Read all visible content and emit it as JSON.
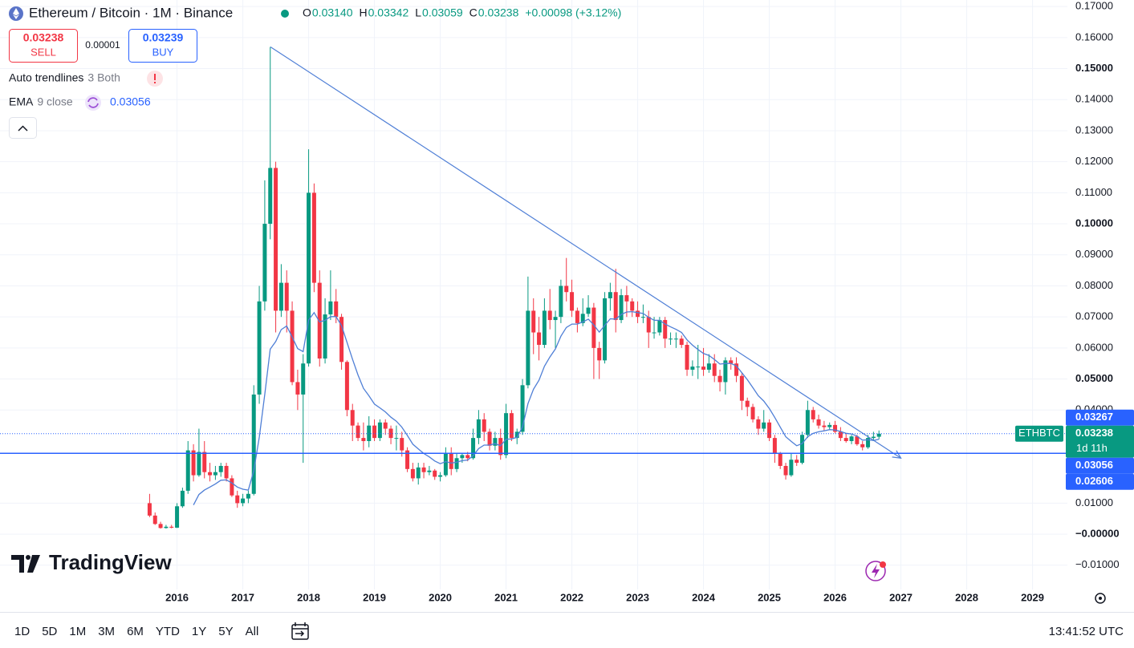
{
  "header": {
    "symbol": "Ethereum / Bitcoin · 1M · Binance",
    "ohlc": [
      {
        "key": "O",
        "value": "0.03140"
      },
      {
        "key": "H",
        "value": "0.03342"
      },
      {
        "key": "L",
        "value": "0.03059"
      },
      {
        "key": "C",
        "value": "0.03238"
      }
    ],
    "change": "+0.00098 (+3.12%)",
    "sell": {
      "price": "0.03238",
      "label": "SELL"
    },
    "spread": "0.00001",
    "buy": {
      "price": "0.03239",
      "label": "BUY"
    },
    "indicators": [
      {
        "name": "Auto trendlines",
        "params": "3 Both"
      },
      {
        "name": "EMA",
        "params": "9 close"
      }
    ]
  },
  "branding": "TradingView",
  "toolbar": {
    "ranges": [
      "1D",
      "5D",
      "1M",
      "3M",
      "6M",
      "YTD",
      "1Y",
      "5Y",
      "All"
    ],
    "time": "13:41:52 UTC"
  },
  "chart_data": {
    "type": "candlestick",
    "up_color": "#089981",
    "down_color": "#f23645",
    "grid": true,
    "xlim": [
      2013.31,
      2029.53
    ],
    "xticks": [
      2016,
      2017,
      2018,
      2019,
      2020,
      2021,
      2022,
      2023,
      2024,
      2025,
      2026,
      2027,
      2028,
      2029
    ],
    "ylim": [
      -0.0178,
      0.1721
    ],
    "yticks": [
      {
        "value": -0.01,
        "label": "−0.01000"
      },
      {
        "value": 0,
        "label": "−0.00000"
      },
      {
        "value": 0.01,
        "label": "0.01000"
      },
      {
        "value": 0.04,
        "label": "0.04000"
      },
      {
        "value": 0.05,
        "label": "0.05000"
      },
      {
        "value": 0.06,
        "label": "0.06000"
      },
      {
        "value": 0.07,
        "label": "0.07000"
      },
      {
        "value": 0.08,
        "label": "0.08000"
      },
      {
        "value": 0.09,
        "label": "0.09000"
      },
      {
        "value": 0.1,
        "label": "0.10000"
      },
      {
        "value": 0.11,
        "label": "0.11000"
      },
      {
        "value": 0.12,
        "label": "0.12000"
      },
      {
        "value": 0.13,
        "label": "0.13000"
      },
      {
        "value": 0.14,
        "label": "0.14000"
      },
      {
        "value": 0.15,
        "label": "0.15000"
      },
      {
        "value": 0.16,
        "label": "0.16000"
      },
      {
        "value": 0.17,
        "label": "0.17000"
      }
    ],
    "x": [
      "2015-08",
      "2015-09",
      "2015-10",
      "2015-11",
      "2015-12",
      "2016-01",
      "2016-02",
      "2016-03",
      "2016-04",
      "2016-05",
      "2016-06",
      "2016-07",
      "2016-08",
      "2016-09",
      "2016-10",
      "2016-11",
      "2016-12",
      "2017-01",
      "2017-02",
      "2017-03",
      "2017-04",
      "2017-05",
      "2017-06",
      "2017-07",
      "2017-08",
      "2017-09",
      "2017-10",
      "2017-11",
      "2017-12",
      "2018-01",
      "2018-02",
      "2018-03",
      "2018-04",
      "2018-05",
      "2018-06",
      "2018-07",
      "2018-08",
      "2018-09",
      "2018-10",
      "2018-11",
      "2018-12",
      "2019-01",
      "2019-02",
      "2019-03",
      "2019-04",
      "2019-05",
      "2019-06",
      "2019-07",
      "2019-08",
      "2019-09",
      "2019-10",
      "2019-11",
      "2019-12",
      "2020-01",
      "2020-02",
      "2020-03",
      "2020-04",
      "2020-05",
      "2020-06",
      "2020-07",
      "2020-08",
      "2020-09",
      "2020-10",
      "2020-11",
      "2020-12",
      "2021-01",
      "2021-02",
      "2021-03",
      "2021-04",
      "2021-05",
      "2021-06",
      "2021-07",
      "2021-08",
      "2021-09",
      "2021-10",
      "2021-11",
      "2021-12",
      "2022-01",
      "2022-02",
      "2022-03",
      "2022-04",
      "2022-05",
      "2022-06",
      "2022-07",
      "2022-08",
      "2022-09",
      "2022-10",
      "2022-11",
      "2022-12",
      "2023-01",
      "2023-02",
      "2023-03",
      "2023-04",
      "2023-05",
      "2023-06",
      "2023-07",
      "2023-08",
      "2023-09",
      "2023-10",
      "2023-11",
      "2023-12",
      "2024-01",
      "2024-02",
      "2024-03",
      "2024-04",
      "2024-05",
      "2024-06",
      "2024-07",
      "2024-08",
      "2024-09",
      "2024-10",
      "2024-11",
      "2024-12",
      "2025-01",
      "2025-02",
      "2025-03",
      "2025-04",
      "2025-05",
      "2025-06",
      "2025-07",
      "2025-08",
      "2025-09",
      "2025-10",
      "2025-11",
      "2025-12",
      "2026-01",
      "2026-02",
      "2026-03",
      "2026-04",
      "2026-05",
      "2026-06",
      "2026-07",
      "2026-08",
      "2026-09"
    ],
    "open": [
      0.01,
      0.006,
      0.0033,
      0.002,
      0.0024,
      0.0021,
      0.009,
      0.014,
      0.027,
      0.019,
      0.0265,
      0.02,
      0.019,
      0.02,
      0.022,
      0.018,
      0.0125,
      0.01,
      0.0115,
      0.013,
      0.045,
      0.075,
      0.1,
      0.118,
      0.072,
      0.081,
      0.072,
      0.049,
      0.045,
      0.055,
      0.11,
      0.081,
      0.0566,
      0.0708,
      0.075,
      0.07,
      0.0555,
      0.04,
      0.035,
      0.031,
      0.03,
      0.035,
      0.031,
      0.036,
      0.034,
      0.031,
      0.031,
      0.027,
      0.021,
      0.018,
      0.0215,
      0.02,
      0.0205,
      0.0185,
      0.019,
      0.026,
      0.021,
      0.0245,
      0.0255,
      0.0245,
      0.031,
      0.037,
      0.033,
      0.0285,
      0.031,
      0.0255,
      0.039,
      0.031,
      0.033,
      0.048,
      0.072,
      0.065,
      0.061,
      0.072,
      0.069,
      0.07,
      0.08,
      0.078,
      0.072,
      0.068,
      0.071,
      0.073,
      0.06,
      0.056,
      0.076,
      0.078,
      0.069,
      0.077,
      0.075,
      0.072,
      0.07,
      0.07,
      0.065,
      0.065,
      0.069,
      0.063,
      0.063,
      0.063,
      0.061,
      0.053,
      0.054,
      0.054,
      0.053,
      0.055,
      0.051,
      0.049,
      0.056,
      0.055,
      0.051,
      0.043,
      0.041,
      0.037,
      0.034,
      0.036,
      0.031,
      0.026,
      0.022,
      0.019,
      0.024,
      0.023,
      0.032,
      0.04,
      0.037,
      0.035,
      0.0345,
      0.0352,
      0.033,
      0.031,
      0.03,
      0.0315,
      0.029,
      0.028,
      0.031,
      0.0314
    ],
    "high": [
      0.013,
      0.007,
      0.004,
      0.003,
      0.003,
      0.01,
      0.015,
      0.03,
      0.029,
      0.034,
      0.03,
      0.023,
      0.022,
      0.023,
      0.023,
      0.019,
      0.014,
      0.013,
      0.014,
      0.048,
      0.08,
      0.114,
      0.157,
      0.12,
      0.087,
      0.085,
      0.075,
      0.053,
      0.058,
      0.124,
      0.113,
      0.085,
      0.076,
      0.085,
      0.079,
      0.071,
      0.056,
      0.042,
      0.036,
      0.036,
      0.038,
      0.037,
      0.037,
      0.037,
      0.035,
      0.035,
      0.033,
      0.028,
      0.023,
      0.023,
      0.023,
      0.022,
      0.021,
      0.02,
      0.028,
      0.028,
      0.026,
      0.026,
      0.0265,
      0.034,
      0.04,
      0.039,
      0.034,
      0.033,
      0.034,
      0.042,
      0.04,
      0.034,
      0.05,
      0.083,
      0.076,
      0.07,
      0.076,
      0.079,
      0.072,
      0.082,
      0.089,
      0.082,
      0.073,
      0.076,
      0.077,
      0.0745,
      0.062,
      0.078,
      0.081,
      0.0855,
      0.079,
      0.08,
      0.076,
      0.075,
      0.074,
      0.072,
      0.07,
      0.07,
      0.07,
      0.065,
      0.065,
      0.064,
      0.062,
      0.056,
      0.061,
      0.06,
      0.058,
      0.058,
      0.053,
      0.057,
      0.057,
      0.057,
      0.052,
      0.044,
      0.042,
      0.038,
      0.04,
      0.037,
      0.032,
      0.0265,
      0.023,
      0.026,
      0.0255,
      0.033,
      0.043,
      0.041,
      0.0385,
      0.0365,
      0.036,
      0.0365,
      0.0345,
      0.0325,
      0.032,
      0.032,
      0.03,
      0.032,
      0.033,
      0.03342
    ],
    "low": [
      0.0055,
      0.003,
      0.0018,
      0.0018,
      0.0019,
      0.002,
      0.0085,
      0.013,
      0.017,
      0.0185,
      0.018,
      0.017,
      0.0175,
      0.0185,
      0.017,
      0.012,
      0.0085,
      0.009,
      0.01,
      0.0125,
      0.042,
      0.072,
      0.095,
      0.065,
      0.07,
      0.065,
      0.048,
      0.04,
      0.023,
      0.054,
      0.078,
      0.054,
      0.055,
      0.069,
      0.068,
      0.053,
      0.038,
      0.03,
      0.03,
      0.027,
      0.028,
      0.03,
      0.03,
      0.032,
      0.029,
      0.027,
      0.025,
      0.02,
      0.017,
      0.016,
      0.018,
      0.019,
      0.0175,
      0.017,
      0.0185,
      0.019,
      0.02,
      0.023,
      0.0235,
      0.024,
      0.029,
      0.03,
      0.027,
      0.027,
      0.024,
      0.0245,
      0.03,
      0.029,
      0.032,
      0.047,
      0.058,
      0.056,
      0.06,
      0.066,
      0.06,
      0.068,
      0.075,
      0.07,
      0.065,
      0.067,
      0.07,
      0.05,
      0.05,
      0.055,
      0.072,
      0.065,
      0.068,
      0.07,
      0.07,
      0.068,
      0.068,
      0.06,
      0.063,
      0.064,
      0.06,
      0.061,
      0.06,
      0.06,
      0.051,
      0.051,
      0.05,
      0.051,
      0.052,
      0.049,
      0.046,
      0.045,
      0.053,
      0.049,
      0.04,
      0.038,
      0.036,
      0.032,
      0.033,
      0.03,
      0.023,
      0.021,
      0.0176,
      0.0185,
      0.022,
      0.0225,
      0.031,
      0.036,
      0.034,
      0.0335,
      0.0335,
      0.0325,
      0.03,
      0.0295,
      0.029,
      0.0285,
      0.027,
      0.0275,
      0.03,
      0.03059
    ],
    "close": [
      0.006,
      0.0033,
      0.002,
      0.0024,
      0.0021,
      0.009,
      0.014,
      0.027,
      0.019,
      0.0265,
      0.02,
      0.019,
      0.02,
      0.022,
      0.018,
      0.0125,
      0.01,
      0.0115,
      0.013,
      0.045,
      0.075,
      0.1,
      0.118,
      0.072,
      0.081,
      0.072,
      0.049,
      0.045,
      0.055,
      0.11,
      0.081,
      0.0566,
      0.0708,
      0.075,
      0.07,
      0.0555,
      0.04,
      0.035,
      0.031,
      0.03,
      0.035,
      0.031,
      0.036,
      0.034,
      0.031,
      0.031,
      0.027,
      0.021,
      0.018,
      0.0215,
      0.02,
      0.0205,
      0.0185,
      0.019,
      0.026,
      0.021,
      0.0245,
      0.0255,
      0.0245,
      0.031,
      0.037,
      0.033,
      0.0285,
      0.031,
      0.0255,
      0.039,
      0.031,
      0.033,
      0.048,
      0.072,
      0.065,
      0.061,
      0.072,
      0.069,
      0.07,
      0.08,
      0.078,
      0.072,
      0.068,
      0.071,
      0.073,
      0.06,
      0.056,
      0.076,
      0.078,
      0.069,
      0.077,
      0.075,
      0.072,
      0.07,
      0.07,
      0.065,
      0.065,
      0.069,
      0.063,
      0.063,
      0.063,
      0.061,
      0.053,
      0.054,
      0.054,
      0.053,
      0.055,
      0.051,
      0.049,
      0.056,
      0.055,
      0.051,
      0.043,
      0.041,
      0.037,
      0.034,
      0.036,
      0.031,
      0.026,
      0.022,
      0.019,
      0.024,
      0.023,
      0.032,
      0.04,
      0.037,
      0.035,
      0.0345,
      0.0352,
      0.033,
      0.031,
      0.03,
      0.0315,
      0.029,
      0.028,
      0.031,
      0.0314,
      0.03238
    ],
    "ema": {
      "color": "#4f7fd6",
      "values": [
        null,
        null,
        null,
        null,
        null,
        null,
        null,
        null,
        0.0094,
        0.0128,
        0.0142,
        0.0152,
        0.0162,
        0.0174,
        0.0175,
        0.0165,
        0.0152,
        0.0145,
        0.0142,
        0.0204,
        0.0313,
        0.045,
        0.0596,
        0.0621,
        0.0659,
        0.0671,
        0.0635,
        0.0598,
        0.0588,
        0.069,
        0.0714,
        0.0684,
        0.0689,
        0.0701,
        0.0701,
        0.0672,
        0.0618,
        0.0564,
        0.0513,
        0.047,
        0.0446,
        0.0419,
        0.0407,
        0.0394,
        0.0377,
        0.0364,
        0.0345,
        0.0318,
        0.029,
        0.0275,
        0.026,
        0.0249,
        0.0236,
        0.0227,
        0.0234,
        0.0229,
        0.0232,
        0.0237,
        0.0239,
        0.0253,
        0.0276,
        0.0287,
        0.0287,
        0.0292,
        0.0285,
        0.0306,
        0.0307,
        0.0312,
        0.0346,
        0.0421,
        0.0467,
        0.0496,
        0.0541,
        0.0571,
        0.0597,
        0.0638,
        0.0666,
        0.0677,
        0.0677,
        0.0684,
        0.0693,
        0.0674,
        0.0651,
        0.0673,
        0.0694,
        0.0693,
        0.0708,
        0.0716,
        0.0717,
        0.0714,
        0.0711,
        0.0699,
        0.0689,
        0.0689,
        0.0677,
        0.0668,
        0.066,
        0.065,
        0.0626,
        0.0609,
        0.0595,
        0.0582,
        0.0576,
        0.0563,
        0.0548,
        0.055,
        0.055,
        0.0542,
        0.052,
        0.0498,
        0.0472,
        0.0446,
        0.0429,
        0.0405,
        0.0376,
        0.0345,
        0.0314,
        0.0299,
        0.0285,
        0.0292,
        0.0314,
        0.0325,
        0.033,
        0.0333,
        0.0337,
        0.0336,
        0.0331,
        0.0325,
        0.0323,
        0.0316,
        0.0303,
        0.0304,
        0.0302,
        0.03056
      ]
    },
    "trendline": {
      "color": "#4f7fd6",
      "x": [
        2017.42,
        2027.0
      ],
      "y": [
        0.157,
        0.0245
      ]
    },
    "price_labels": [
      {
        "value": 0.03267,
        "color": "#2962ff"
      },
      {
        "value": 0.03238,
        "color": "#089981",
        "line": "dotted",
        "symbol": "ETHBTC",
        "countdown": "1d 11h"
      },
      {
        "value": 0.03056,
        "color": "#2962ff"
      },
      {
        "value": 0.02606,
        "color": "#2962ff",
        "line": "solid"
      }
    ]
  }
}
